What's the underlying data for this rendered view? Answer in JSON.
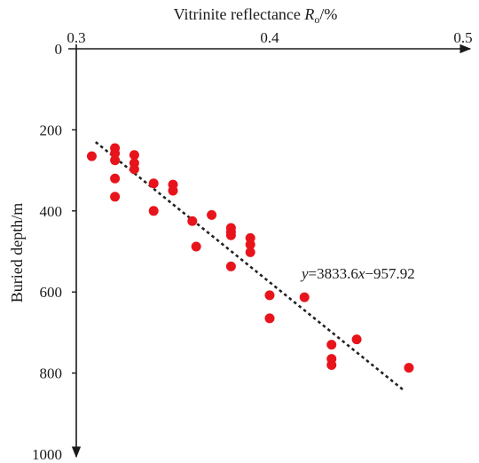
{
  "chart_data": {
    "type": "scatter",
    "xlabel_main": "Vitrinite reflectance ",
    "xlabel_var": "R",
    "xlabel_sub": "o",
    "xlabel_unit": "/%",
    "ylabel": "Buried depth/m",
    "x_ticks": [
      0.3,
      0.4,
      0.5
    ],
    "x_tick_labels": [
      "0.3",
      "0.4",
      "0.5"
    ],
    "y_ticks": [
      0,
      200,
      400,
      600,
      800,
      1000
    ],
    "y_tick_labels": [
      "0",
      "200",
      "400",
      "600",
      "800",
      "1000"
    ],
    "xlim": [
      0.3,
      0.5
    ],
    "ylim": [
      0,
      1000
    ],
    "y_inverted": true,
    "x_axis_position": "top",
    "grid": false,
    "legend": "none",
    "marker_color": "#e8141c",
    "trend_color": "#222222",
    "points": [
      {
        "x": 0.308,
        "y": 265
      },
      {
        "x": 0.32,
        "y": 245
      },
      {
        "x": 0.32,
        "y": 258
      },
      {
        "x": 0.32,
        "y": 275
      },
      {
        "x": 0.32,
        "y": 320
      },
      {
        "x": 0.32,
        "y": 365
      },
      {
        "x": 0.33,
        "y": 262
      },
      {
        "x": 0.33,
        "y": 282
      },
      {
        "x": 0.33,
        "y": 297
      },
      {
        "x": 0.34,
        "y": 332
      },
      {
        "x": 0.34,
        "y": 400
      },
      {
        "x": 0.35,
        "y": 335
      },
      {
        "x": 0.35,
        "y": 350
      },
      {
        "x": 0.36,
        "y": 425
      },
      {
        "x": 0.362,
        "y": 488
      },
      {
        "x": 0.37,
        "y": 410
      },
      {
        "x": 0.38,
        "y": 442
      },
      {
        "x": 0.38,
        "y": 452
      },
      {
        "x": 0.38,
        "y": 460
      },
      {
        "x": 0.38,
        "y": 537
      },
      {
        "x": 0.39,
        "y": 467
      },
      {
        "x": 0.39,
        "y": 483
      },
      {
        "x": 0.39,
        "y": 502
      },
      {
        "x": 0.4,
        "y": 608
      },
      {
        "x": 0.4,
        "y": 665
      },
      {
        "x": 0.418,
        "y": 613
      },
      {
        "x": 0.432,
        "y": 730
      },
      {
        "x": 0.432,
        "y": 765
      },
      {
        "x": 0.432,
        "y": 780
      },
      {
        "x": 0.445,
        "y": 717
      },
      {
        "x": 0.472,
        "y": 787
      }
    ],
    "trendline": {
      "x": [
        0.31,
        0.47
      ],
      "y": [
        230,
        845
      ],
      "style": "dotted"
    },
    "annotation": {
      "var_y": "y",
      "eq": "=3833.6",
      "var_x": "x",
      "rest": "−957.92"
    }
  }
}
